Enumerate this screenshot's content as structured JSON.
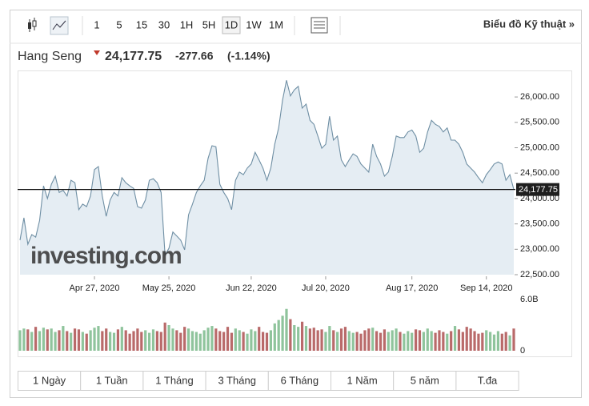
{
  "toolbar": {
    "intervals": [
      "1",
      "5",
      "15",
      "30",
      "1H",
      "5H",
      "1D",
      "1W",
      "1M"
    ],
    "selected_index": 6,
    "technical_chart_link": "Biểu đồ Kỹ thuật »"
  },
  "header": {
    "index_name": "Hang Seng",
    "change": "-277.66",
    "change_percent": "(-1.14%)",
    "watermark": "investing.com"
  },
  "chart_data": [
    {
      "type": "area",
      "color": "#6f8fa4",
      "fill": "#e5edf3",
      "last_price": {
        "value": 24177.75,
        "label": "24,177.75"
      },
      "values": [
        23180,
        23620,
        23100,
        23290,
        23240,
        23570,
        24250,
        24000,
        24280,
        24440,
        24120,
        24160,
        24050,
        24360,
        24310,
        23780,
        23890,
        23840,
        24050,
        24570,
        24630,
        24050,
        23650,
        23970,
        24120,
        24050,
        24410,
        24310,
        24250,
        24200,
        23840,
        23810,
        23970,
        24360,
        24390,
        24310,
        24120,
        22890,
        23020,
        23340,
        23260,
        23180,
        22990,
        23680,
        23890,
        24120,
        24250,
        24360,
        24790,
        25040,
        25020,
        24280,
        24120,
        24000,
        23780,
        24360,
        24520,
        24470,
        24600,
        24680,
        24910,
        24760,
        24600,
        24360,
        24600,
        25070,
        25390,
        25940,
        26330,
        26020,
        26140,
        26210,
        25780,
        25860,
        25540,
        25460,
        25230,
        24990,
        25070,
        25620,
        25150,
        25230,
        24760,
        24630,
        24760,
        24880,
        24830,
        24680,
        24600,
        24520,
        25070,
        24830,
        24680,
        24440,
        24520,
        24830,
        25230,
        25200,
        25200,
        25310,
        25350,
        25230,
        24910,
        24990,
        25310,
        25540,
        25460,
        25420,
        25310,
        25390,
        25150,
        25150,
        25070,
        24910,
        24680,
        24600,
        24520,
        24410,
        24310,
        24470,
        24570,
        24680,
        24720,
        24680,
        24360,
        24470,
        24180
      ],
      "xlim": [
        0,
        126
      ],
      "xticks": [
        {
          "value": 19,
          "label": "Apr 27, 2020"
        },
        {
          "value": 38,
          "label": "May 25, 2020"
        },
        {
          "value": 59,
          "label": "Jun 22, 2020"
        },
        {
          "value": 78,
          "label": "Jul 20, 2020"
        },
        {
          "value": 100,
          "label": "Aug 17, 2020"
        },
        {
          "value": 119,
          "label": "Sep 14, 2020"
        }
      ],
      "ylim": [
        22500,
        26500
      ],
      "yticks": [
        {
          "value": 22500,
          "label": "22,500.00"
        },
        {
          "value": 23000,
          "label": "23,000.00"
        },
        {
          "value": 23500,
          "label": "23,500.00"
        },
        {
          "value": 24000,
          "label": "24,000.00"
        },
        {
          "value": 24500,
          "label": "24,500.00"
        },
        {
          "value": 25000,
          "label": "25,000.00"
        },
        {
          "value": 25500,
          "label": "25,500.00"
        },
        {
          "value": 26000,
          "label": "26,000.00"
        }
      ]
    },
    {
      "type": "bar",
      "up_color": "#8fc49c",
      "down_color": "#b96a6a",
      "values": [
        2.4,
        2.6,
        2.5,
        2.2,
        2.8,
        2.3,
        2.7,
        2.5,
        2.6,
        2.2,
        2.4,
        2.9,
        2.3,
        2.1,
        2.6,
        2.5,
        2.2,
        2.0,
        2.4,
        2.7,
        2.9,
        2.3,
        2.6,
        2.2,
        2.1,
        2.5,
        2.8,
        2.4,
        2.0,
        2.3,
        2.6,
        2.2,
        2.4,
        2.1,
        2.5,
        2.3,
        2.2,
        3.3,
        3.0,
        2.6,
        2.4,
        2.1,
        2.8,
        2.6,
        2.3,
        2.2,
        2.0,
        2.4,
        2.7,
        2.9,
        2.6,
        2.3,
        2.2,
        2.8,
        2.1,
        2.6,
        2.4,
        2.2,
        2.0,
        2.5,
        2.3,
        2.8,
        2.2,
        2.1,
        2.4,
        3.2,
        3.6,
        4.1,
        4.9,
        3.7,
        3.0,
        2.8,
        3.4,
        2.9,
        2.6,
        2.7,
        2.4,
        2.5,
        2.2,
        2.9,
        2.4,
        2.2,
        2.6,
        2.8,
        2.3,
        2.1,
        2.2,
        2.0,
        2.4,
        2.6,
        2.7,
        2.3,
        2.1,
        2.5,
        2.2,
        2.4,
        2.6,
        2.2,
        2.0,
        2.3,
        2.1,
        2.5,
        2.4,
        2.2,
        2.6,
        2.3,
        2.1,
        2.4,
        2.2,
        2.0,
        2.3,
        2.9,
        2.5,
        2.2,
        2.8,
        2.6,
        2.3,
        2.0,
        2.1,
        2.4,
        2.2,
        1.9,
        2.3,
        2.0,
        2.2,
        1.8,
        2.6
      ],
      "ylim": [
        0,
        6
      ],
      "yticks": [
        {
          "value": 6,
          "label": "6.0B"
        },
        0
      ]
    }
  ],
  "range_buttons": [
    "1 Ngày",
    "1 Tuần",
    "1 Tháng",
    "3 Tháng",
    "6 Tháng",
    "1 Năm",
    "5 năm",
    "T.đa"
  ]
}
